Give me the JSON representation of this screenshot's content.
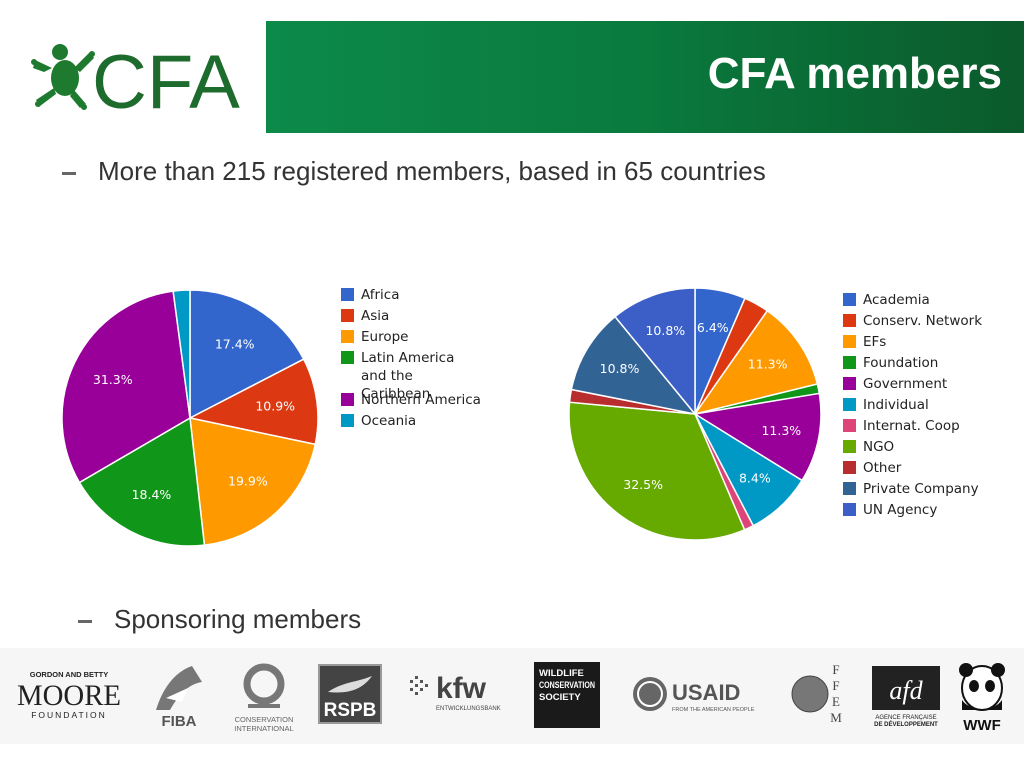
{
  "header": {
    "logo_text": "CFA",
    "title": "CFA members"
  },
  "bullets": {
    "registered": "More than 215 registered members, based in 65 countries",
    "sponsoring": "Sponsoring members"
  },
  "chart_data": [
    {
      "type": "pie",
      "categories": [
        "Africa",
        "Asia",
        "Europe",
        "Latin America and the Caribbean",
        "Northern America",
        "Oceania"
      ],
      "values": [
        17.4,
        10.9,
        19.9,
        18.4,
        31.3,
        2.1
      ],
      "value_labels": [
        "17.4%",
        "10.9%",
        "19.9%",
        "18.4%",
        "31.3%",
        ""
      ],
      "colors": [
        "#3366cc",
        "#dc3912",
        "#ff9900",
        "#109618",
        "#990099",
        "#0099c6"
      ],
      "legend_position": "right"
    },
    {
      "type": "pie",
      "categories": [
        "Academia",
        "Conserv. Network",
        "EFs",
        "Foundation",
        "Government",
        "Individual",
        "Internat. Coop",
        "NGO",
        "Other",
        "Private Company",
        "UN Agency"
      ],
      "values": [
        6.4,
        3.2,
        11.3,
        1.2,
        11.3,
        8.4,
        1.2,
        32.5,
        1.6,
        10.8,
        10.8
      ],
      "value_labels": [
        "6.4%",
        "",
        "11.3%",
        "",
        "11.3%",
        "8.4%",
        "",
        "32.5%",
        "",
        "10.8%",
        "10.8%"
      ],
      "colors": [
        "#3366cc",
        "#dc3912",
        "#ff9900",
        "#109618",
        "#990099",
        "#0099c6",
        "#dd4477",
        "#66aa00",
        "#b82e2e",
        "#316395",
        "#3b5fc6"
      ],
      "legend_position": "right"
    }
  ],
  "sponsors": {
    "moore": [
      "GORDON AND BETTY",
      "MOORE",
      "FOUNDATION"
    ],
    "fiba": "FIBA",
    "ci": [
      "CONSERVATION",
      "INTERNATIONAL"
    ],
    "rspb": "RSPB",
    "kfw": [
      "kfw",
      "ENTWICKLUNGSBANK"
    ],
    "wcs": [
      "WILDLIFE",
      "CONSERVATION",
      "SOCIETY"
    ],
    "usaid": [
      "USAID",
      "FROM THE AMERICAN PEOPLE"
    ],
    "ffem": [
      "F",
      "F",
      "E",
      "M"
    ],
    "afd": [
      "afd",
      "AGENCE FRANÇAISE",
      "DE DÉVELOPPEMENT"
    ],
    "wwf": "WWF"
  }
}
